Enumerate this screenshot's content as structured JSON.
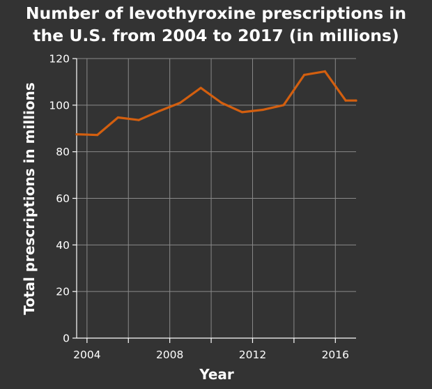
{
  "chart_data": {
    "type": "line",
    "title_lines": [
      "Number of levothyroxine prescriptions in",
      "the U.S. from 2004 to 2017 (in millions)"
    ],
    "xlabel": "Year",
    "ylabel": "Total prescriptions in millions",
    "xlim": [
      2003.5,
      2017
    ],
    "ylim": [
      0,
      120
    ],
    "x_ticks": [
      2004,
      2006,
      2008,
      2010,
      2012,
      2014,
      2016
    ],
    "x_tick_labels": [
      "2004",
      "",
      "2008",
      "",
      "2012",
      "",
      "2016"
    ],
    "y_ticks": [
      0,
      20,
      40,
      60,
      80,
      100,
      120
    ],
    "y_tick_labels": [
      "0",
      "20",
      "40",
      "60",
      "80",
      "100",
      "120"
    ],
    "grid": true,
    "line_color": "#d35f0f",
    "series": [
      {
        "x": [
          2003.5,
          2004.5,
          2005.5,
          2006.5,
          2007.5,
          2008.5,
          2009.5,
          2010.5,
          2011.5,
          2012.5,
          2013.5,
          2014.5,
          2015.5,
          2016.5,
          2017
        ],
        "values": [
          87.5,
          87.2,
          94.7,
          93.6,
          97.5,
          101,
          107.4,
          101,
          97,
          98,
          100,
          113,
          114.5,
          102,
          102
        ]
      }
    ]
  }
}
